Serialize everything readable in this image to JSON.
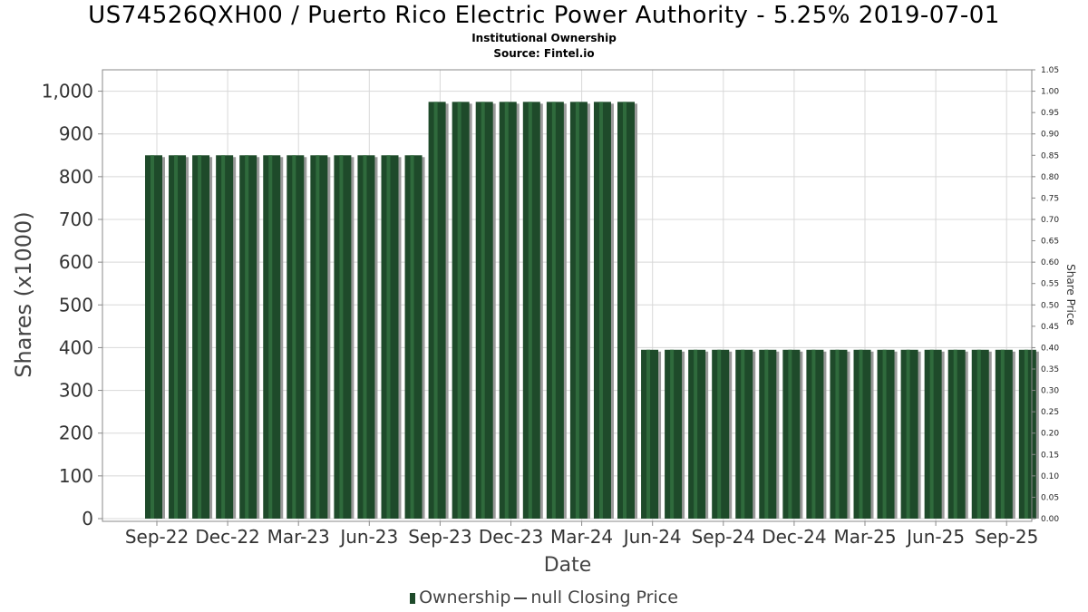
{
  "header": {
    "title": "US74526QXH00 / Puerto Rico Electric Power Authority - 5.25% 2019-07-01",
    "subtitle": "Institutional Ownership",
    "source": "Source: Fintel.io"
  },
  "legend": {
    "ownership_label": "Ownership",
    "closing_label": "null Closing Price"
  },
  "colors": {
    "bar": "#1e4a2a",
    "bar_highlight": "#2f6a3c",
    "shadow": "#9a9a9a",
    "grid": "#d8d8d8"
  },
  "chart_data": {
    "type": "bar",
    "title": "US74526QXH00 / Puerto Rico Electric Power Authority - 5.25% 2019-07-01",
    "xlabel": "Date",
    "ylabel": "Shares (x1000)",
    "y2label": "Share Price",
    "ylim": [
      0,
      1050
    ],
    "y2lim": [
      0,
      1.05
    ],
    "yticks": [
      0,
      100,
      200,
      300,
      400,
      500,
      600,
      700,
      800,
      900,
      1000
    ],
    "ytick_labels": [
      "0",
      "100",
      "200",
      "300",
      "400",
      "500",
      "600",
      "700",
      "800",
      "900",
      "1,000"
    ],
    "y2ticks": [
      "0.00",
      "0.05",
      "0.10",
      "0.15",
      "0.20",
      "0.25",
      "0.30",
      "0.35",
      "0.40",
      "0.45",
      "0.50",
      "0.55",
      "0.60",
      "0.65",
      "0.70",
      "0.75",
      "0.80",
      "0.85",
      "0.90",
      "0.95",
      "1.00",
      "1.05"
    ],
    "xtick_labels": [
      "Sep-22",
      "Dec-22",
      "Mar-23",
      "Jun-23",
      "Sep-23",
      "Dec-23",
      "Mar-24",
      "Jun-24",
      "Sep-24",
      "Dec-24",
      "Mar-25",
      "Jun-25",
      "Sep-25"
    ],
    "grid": true,
    "legend_position": "bottom",
    "series": [
      {
        "name": "Ownership",
        "values": [
          850,
          850,
          850,
          850,
          850,
          850,
          850,
          850,
          850,
          850,
          850,
          850,
          975,
          975,
          975,
          975,
          975,
          975,
          975,
          975,
          975,
          395,
          395,
          395,
          395,
          395,
          395,
          395,
          395,
          395,
          395,
          395,
          395,
          395,
          395,
          395,
          395,
          395
        ]
      },
      {
        "name": "null Closing Price",
        "values": []
      }
    ]
  }
}
